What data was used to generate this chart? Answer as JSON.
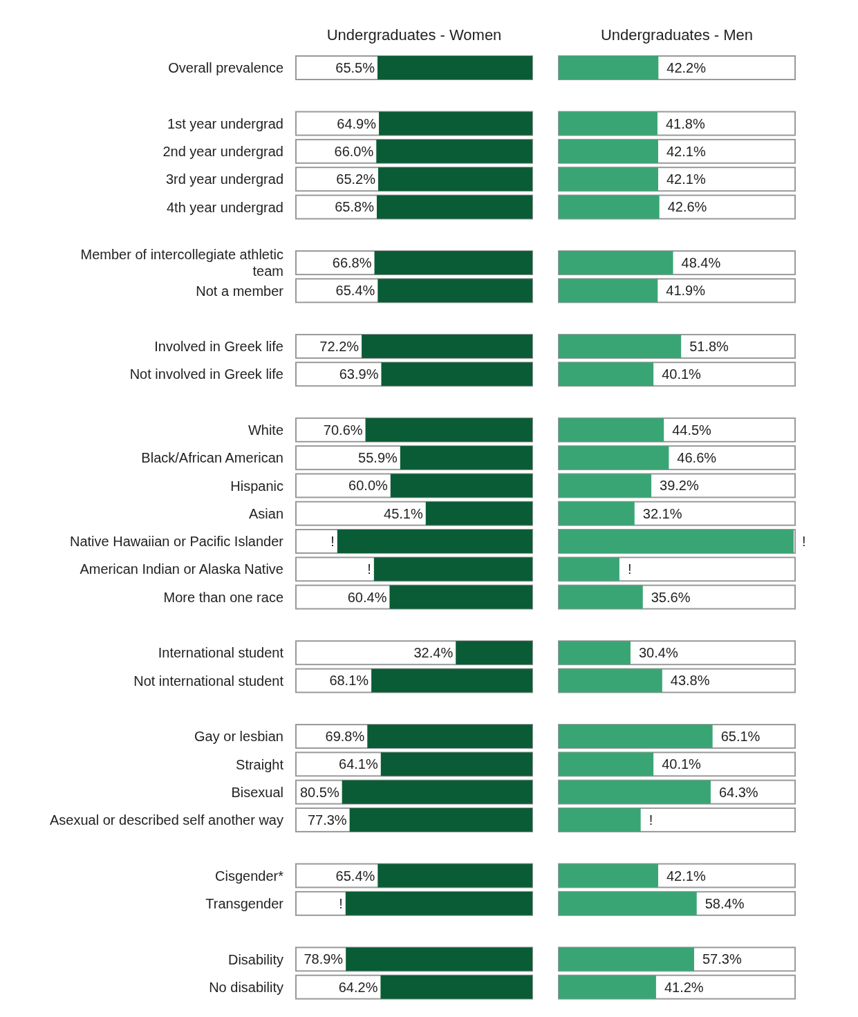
{
  "chart_data": [
    {
      "type": "bar",
      "orientation": "horizontal",
      "title": "Undergraduates - Women",
      "color": "#0a5c36",
      "xlim": [
        100,
        0
      ],
      "tick_labels": "y",
      "categories": [
        "Overall prevalence",
        null,
        "1st year undergrad",
        "2nd year undergrad",
        "3rd year undergrad",
        "4th year undergrad",
        null,
        "Member of intercollegiate athletic team",
        "Not a member",
        null,
        "Involved in Greek life",
        "Not involved in Greek life",
        null,
        "White",
        "Black/African American",
        "Hispanic",
        "Asian",
        "Native Hawaiian or Pacific Islander",
        "American Indian or Alaska Native",
        "More than one race",
        null,
        "International student",
        "Not  international student",
        null,
        "Gay or lesbian",
        "Straight",
        "Bisexual",
        "Asexual or described self another way",
        null,
        "Cisgender*",
        "Transgender",
        null,
        "Disability",
        "No disability"
      ],
      "values": [
        65.5,
        null,
        64.9,
        66.0,
        65.2,
        65.8,
        null,
        66.8,
        65.4,
        null,
        72.2,
        63.9,
        null,
        70.6,
        55.9,
        60.0,
        45.1,
        82.5,
        67,
        60.4,
        null,
        32.4,
        68.1,
        null,
        69.8,
        64.1,
        80.5,
        77.3,
        null,
        65.4,
        79,
        null,
        78.9,
        64.2
      ],
      "value_labels": [
        "65.5%",
        null,
        "64.9%",
        "66.0%",
        "65.2%",
        "65.8%",
        null,
        "66.8%",
        "65.4%",
        null,
        "72.2%",
        "63.9%",
        null,
        "70.6%",
        "55.9%",
        "60.0%",
        "45.1%",
        "!",
        "!",
        "60.4%",
        null,
        "32.4%",
        "68.1%",
        null,
        "69.8%",
        "64.1%",
        "80.5%",
        "77.3%",
        null,
        "65.4%",
        "!",
        null,
        "78.9%",
        "64.2%"
      ]
    },
    {
      "type": "bar",
      "orientation": "horizontal",
      "title": "Undergraduates - Men",
      "color": "#3aa574",
      "xlim": [
        0,
        100
      ],
      "tick_labels": false,
      "categories": [
        null,
        null,
        null,
        null,
        null,
        null,
        null,
        null,
        null,
        null,
        null,
        null,
        null,
        null,
        null,
        null,
        null,
        null,
        null,
        null,
        null,
        null,
        null,
        null,
        null,
        null,
        null,
        null,
        null,
        null,
        null,
        null,
        null,
        null
      ],
      "values": [
        42.2,
        null,
        41.8,
        42.1,
        42.1,
        42.6,
        null,
        48.4,
        41.9,
        null,
        51.8,
        40.1,
        null,
        44.5,
        46.6,
        39.2,
        32.1,
        99.4,
        25.7,
        35.6,
        null,
        30.4,
        43.8,
        null,
        65.1,
        40.1,
        64.3,
        34.7,
        null,
        42.1,
        58.4,
        null,
        57.3,
        41.2
      ],
      "value_labels": [
        "42.2%",
        null,
        "41.8%",
        "42.1%",
        "42.1%",
        "42.6%",
        null,
        "48.4%",
        "41.9%",
        null,
        "51.8%",
        "40.1%",
        null,
        "44.5%",
        "46.6%",
        "39.2%",
        "32.1%",
        "!",
        "!",
        "35.6%",
        null,
        "30.4%",
        "43.8%",
        null,
        "65.1%",
        "40.1%",
        "64.3%",
        "!",
        null,
        "42.1%",
        "58.4%",
        null,
        "57.3%",
        "41.2%"
      ]
    }
  ]
}
